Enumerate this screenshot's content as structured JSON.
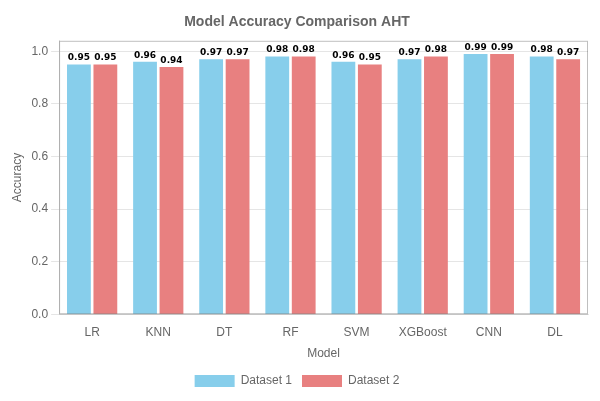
{
  "chart_data": {
    "type": "bar",
    "title": "Model Accuracy Comparison AHT",
    "x_label": "Model",
    "y_label": "Accuracy",
    "categories": [
      "LR",
      "KNN",
      "DT",
      "RF",
      "SVM",
      "XGBoost",
      "CNN",
      "DL"
    ],
    "series": [
      {
        "name": "Dataset 1",
        "color": "#87CEEB",
        "values": [
          0.95,
          0.96,
          0.97,
          0.98,
          0.96,
          0.97,
          0.99,
          0.98
        ]
      },
      {
        "name": "Dataset 2",
        "color": "#E88080",
        "values": [
          0.95,
          0.94,
          0.97,
          0.98,
          0.95,
          0.98,
          0.99,
          0.97
        ]
      }
    ],
    "ylim": [
      0.0,
      1.04
    ],
    "yticks": [
      {
        "value": 0,
        "label": "0.0"
      },
      0.2,
      0.4,
      0.6,
      0.8,
      {
        "value": 1,
        "label": "1.0"
      }
    ],
    "grid": true,
    "legend": "bottom",
    "data_labels": true
  }
}
